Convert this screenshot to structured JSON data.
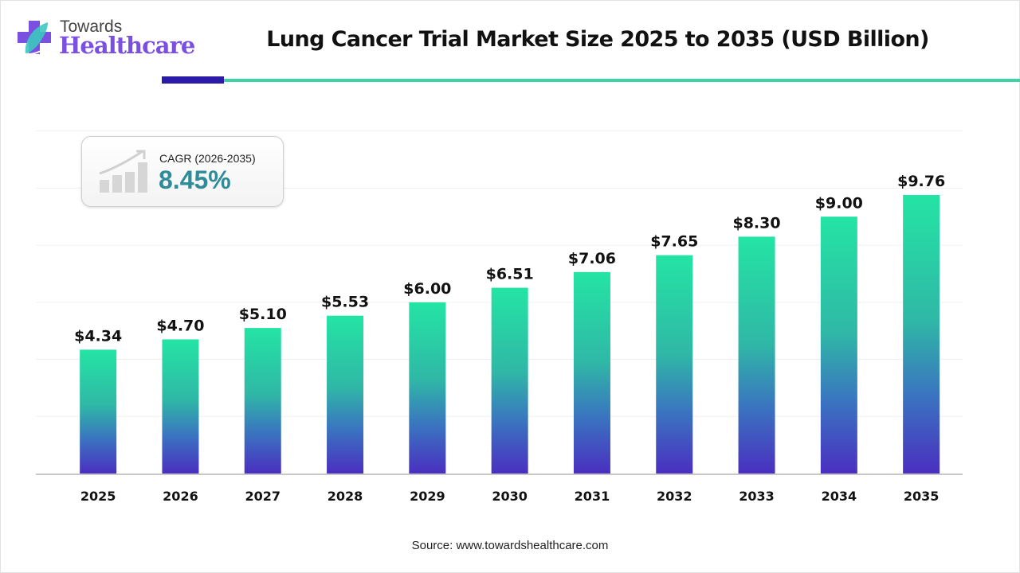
{
  "brand": {
    "line1": "Towards",
    "line2": "Healthcare"
  },
  "cagr": {
    "label": "CAGR (2026-2035)",
    "value": "8.45%"
  },
  "source": "Source: www.towardshealthcare.com",
  "colors": {
    "bar_top": "#24e4a4",
    "bar_bottom": "#4a2fc0",
    "accent_dark": "#2c1ba8",
    "accent_light": "#3dd3a4",
    "cagr": "#2e8b9a"
  },
  "chart_data": {
    "type": "bar",
    "title": "Lung Cancer Trial Market Size 2025 to 2035 (USD Billion)",
    "xlabel": "",
    "ylabel": "",
    "categories": [
      "2025",
      "2026",
      "2027",
      "2028",
      "2029",
      "2030",
      "2031",
      "2032",
      "2033",
      "2034",
      "2035"
    ],
    "values": [
      4.34,
      4.7,
      5.1,
      5.53,
      6.0,
      6.51,
      7.06,
      7.65,
      8.3,
      9.0,
      9.76
    ],
    "labels": [
      "$4.34",
      "$4.70",
      "$5.10",
      "$5.53",
      "$6.00",
      "$6.51",
      "$7.06",
      "$7.65",
      "$8.30",
      "$9.00",
      "$9.76"
    ],
    "ylim": [
      0,
      12
    ],
    "grid": true,
    "gridlines": [
      2,
      4,
      6,
      8,
      10,
      12
    ]
  }
}
